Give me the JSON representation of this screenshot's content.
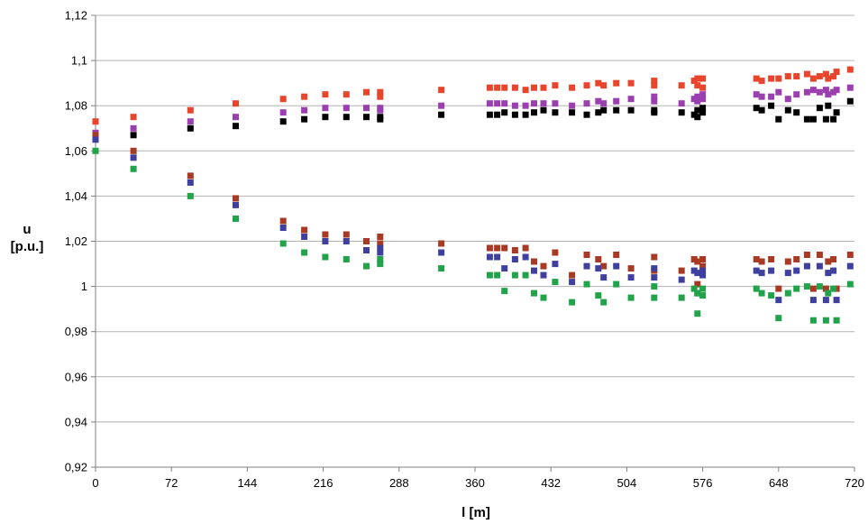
{
  "chart_data": {
    "type": "scatter",
    "xlabel": "l [m]",
    "ylabel_lines": [
      "u",
      "[p.u.]"
    ],
    "xlim": [
      0,
      720
    ],
    "ylim": [
      0.92,
      1.12
    ],
    "x_ticks": [
      0,
      72,
      144,
      216,
      288,
      360,
      432,
      504,
      576,
      648,
      720
    ],
    "x_tick_labels": [
      "0",
      "72",
      "144",
      "216",
      "288",
      "360",
      "432",
      "504",
      "576",
      "648",
      "720"
    ],
    "y_ticks": [
      0.92,
      0.94,
      0.96,
      0.98,
      1.0,
      1.02,
      1.04,
      1.06,
      1.08,
      1.1,
      1.12
    ],
    "y_tick_labels": [
      "0,92",
      "0,94",
      "0,96",
      "0,98",
      "1",
      "1,02",
      "1,04",
      "1,06",
      "1,08",
      "1,1",
      "1,12"
    ],
    "grid": "horizontal",
    "legend": "none",
    "marker": "square",
    "series": [
      {
        "color": "#e8452c",
        "points": [
          [
            0,
            1.073
          ],
          [
            36,
            1.075
          ],
          [
            90,
            1.078
          ],
          [
            133,
            1.081
          ],
          [
            178,
            1.083
          ],
          [
            198,
            1.084
          ],
          [
            218,
            1.085
          ],
          [
            238,
            1.085
          ],
          [
            257,
            1.086
          ],
          [
            270,
            1.086
          ],
          [
            270,
            1.084
          ],
          [
            328,
            1.087
          ],
          [
            374,
            1.088
          ],
          [
            381,
            1.088
          ],
          [
            388,
            1.088
          ],
          [
            398,
            1.088
          ],
          [
            408,
            1.087
          ],
          [
            416,
            1.088
          ],
          [
            425,
            1.088
          ],
          [
            436,
            1.089
          ],
          [
            452,
            1.088
          ],
          [
            466,
            1.089
          ],
          [
            477,
            1.09
          ],
          [
            482,
            1.089
          ],
          [
            494,
            1.09
          ],
          [
            508,
            1.09
          ],
          [
            530,
            1.091
          ],
          [
            530,
            1.089
          ],
          [
            556,
            1.089
          ],
          [
            568,
            1.091
          ],
          [
            571,
            1.092
          ],
          [
            571,
            1.089
          ],
          [
            576,
            1.092
          ],
          [
            576,
            1.088
          ],
          [
            627,
            1.092
          ],
          [
            632,
            1.091
          ],
          [
            641,
            1.092
          ],
          [
            648,
            1.092
          ],
          [
            657,
            1.093
          ],
          [
            665,
            1.093
          ],
          [
            675,
            1.094
          ],
          [
            681,
            1.092
          ],
          [
            687,
            1.093
          ],
          [
            693,
            1.094
          ],
          [
            695,
            1.092
          ],
          [
            700,
            1.093
          ],
          [
            703,
            1.095
          ],
          [
            716,
            1.096
          ]
        ]
      },
      {
        "color": "#9b3fb0",
        "points": [
          [
            0,
            1.068
          ],
          [
            36,
            1.07
          ],
          [
            90,
            1.073
          ],
          [
            133,
            1.075
          ],
          [
            178,
            1.077
          ],
          [
            198,
            1.078
          ],
          [
            218,
            1.079
          ],
          [
            238,
            1.079
          ],
          [
            257,
            1.079
          ],
          [
            270,
            1.079
          ],
          [
            270,
            1.078
          ],
          [
            328,
            1.08
          ],
          [
            374,
            1.081
          ],
          [
            381,
            1.081
          ],
          [
            388,
            1.081
          ],
          [
            398,
            1.08
          ],
          [
            408,
            1.08
          ],
          [
            416,
            1.081
          ],
          [
            425,
            1.081
          ],
          [
            436,
            1.081
          ],
          [
            452,
            1.08
          ],
          [
            466,
            1.081
          ],
          [
            477,
            1.082
          ],
          [
            482,
            1.081
          ],
          [
            494,
            1.082
          ],
          [
            508,
            1.083
          ],
          [
            530,
            1.082
          ],
          [
            530,
            1.084
          ],
          [
            556,
            1.081
          ],
          [
            568,
            1.083
          ],
          [
            571,
            1.084
          ],
          [
            571,
            1.082
          ],
          [
            576,
            1.085
          ],
          [
            576,
            1.083
          ],
          [
            627,
            1.085
          ],
          [
            632,
            1.084
          ],
          [
            641,
            1.084
          ],
          [
            648,
            1.086
          ],
          [
            657,
            1.083
          ],
          [
            665,
            1.085
          ],
          [
            675,
            1.086
          ],
          [
            681,
            1.087
          ],
          [
            687,
            1.086
          ],
          [
            693,
            1.087
          ],
          [
            695,
            1.085
          ],
          [
            700,
            1.086
          ],
          [
            703,
            1.087
          ],
          [
            716,
            1.088
          ]
        ]
      },
      {
        "color": "#000000",
        "points": [
          [
            0,
            1.066
          ],
          [
            36,
            1.067
          ],
          [
            90,
            1.07
          ],
          [
            133,
            1.071
          ],
          [
            178,
            1.073
          ],
          [
            198,
            1.074
          ],
          [
            218,
            1.075
          ],
          [
            238,
            1.075
          ],
          [
            257,
            1.075
          ],
          [
            270,
            1.075
          ],
          [
            270,
            1.074
          ],
          [
            328,
            1.076
          ],
          [
            374,
            1.076
          ],
          [
            381,
            1.076
          ],
          [
            388,
            1.077
          ],
          [
            398,
            1.076
          ],
          [
            408,
            1.076
          ],
          [
            416,
            1.077
          ],
          [
            425,
            1.078
          ],
          [
            436,
            1.077
          ],
          [
            452,
            1.077
          ],
          [
            466,
            1.076
          ],
          [
            477,
            1.077
          ],
          [
            482,
            1.078
          ],
          [
            494,
            1.078
          ],
          [
            508,
            1.078
          ],
          [
            530,
            1.077
          ],
          [
            530,
            1.078
          ],
          [
            556,
            1.077
          ],
          [
            568,
            1.076
          ],
          [
            571,
            1.075
          ],
          [
            571,
            1.078
          ],
          [
            576,
            1.077
          ],
          [
            576,
            1.079
          ],
          [
            627,
            1.079
          ],
          [
            632,
            1.078
          ],
          [
            641,
            1.08
          ],
          [
            648,
            1.074
          ],
          [
            657,
            1.078
          ],
          [
            665,
            1.077
          ],
          [
            675,
            1.074
          ],
          [
            681,
            1.074
          ],
          [
            687,
            1.079
          ],
          [
            693,
            1.074
          ],
          [
            695,
            1.08
          ],
          [
            700,
            1.074
          ],
          [
            703,
            1.077
          ],
          [
            716,
            1.082
          ]
        ]
      },
      {
        "color": "#a83a24",
        "points": [
          [
            0,
            1.067
          ],
          [
            36,
            1.06
          ],
          [
            90,
            1.049
          ],
          [
            133,
            1.039
          ],
          [
            178,
            1.029
          ],
          [
            198,
            1.025
          ],
          [
            218,
            1.023
          ],
          [
            238,
            1.023
          ],
          [
            257,
            1.02
          ],
          [
            270,
            1.022
          ],
          [
            270,
            1.019
          ],
          [
            328,
            1.019
          ],
          [
            374,
            1.017
          ],
          [
            381,
            1.017
          ],
          [
            388,
            1.017
          ],
          [
            398,
            1.016
          ],
          [
            408,
            1.017
          ],
          [
            416,
            1.011
          ],
          [
            425,
            1.009
          ],
          [
            436,
            1.015
          ],
          [
            452,
            1.005
          ],
          [
            466,
            1.014
          ],
          [
            477,
            1.012
          ],
          [
            482,
            1.009
          ],
          [
            494,
            1.014
          ],
          [
            508,
            1.008
          ],
          [
            530,
            1.013
          ],
          [
            530,
            1.007
          ],
          [
            556,
            1.007
          ],
          [
            568,
            1.012
          ],
          [
            571,
            1.001
          ],
          [
            571,
            1.011
          ],
          [
            576,
            1.012
          ],
          [
            576,
            1.009
          ],
          [
            627,
            1.012
          ],
          [
            632,
            1.011
          ],
          [
            641,
            1.012
          ],
          [
            648,
            0.999
          ],
          [
            657,
            1.011
          ],
          [
            665,
            1.012
          ],
          [
            675,
            1.014
          ],
          [
            681,
            0.999
          ],
          [
            687,
            1.014
          ],
          [
            693,
            0.999
          ],
          [
            695,
            1.011
          ],
          [
            700,
            1.012
          ],
          [
            703,
            0.999
          ],
          [
            716,
            1.014
          ]
        ]
      },
      {
        "color": "#3f3f9f",
        "points": [
          [
            0,
            1.065
          ],
          [
            36,
            1.057
          ],
          [
            90,
            1.046
          ],
          [
            133,
            1.036
          ],
          [
            178,
            1.026
          ],
          [
            198,
            1.022
          ],
          [
            218,
            1.02
          ],
          [
            238,
            1.02
          ],
          [
            257,
            1.016
          ],
          [
            270,
            1.017
          ],
          [
            270,
            1.015
          ],
          [
            328,
            1.015
          ],
          [
            374,
            1.013
          ],
          [
            381,
            1.013
          ],
          [
            388,
            1.008
          ],
          [
            398,
            1.012
          ],
          [
            408,
            1.013
          ],
          [
            416,
            1.007
          ],
          [
            425,
            1.005
          ],
          [
            436,
            1.01
          ],
          [
            452,
            1.002
          ],
          [
            466,
            1.009
          ],
          [
            477,
            1.008
          ],
          [
            482,
            1.004
          ],
          [
            494,
            1.009
          ],
          [
            508,
            1.004
          ],
          [
            530,
            1.008
          ],
          [
            530,
            1.004
          ],
          [
            556,
            1.003
          ],
          [
            568,
            1.007
          ],
          [
            571,
            0.997
          ],
          [
            571,
            1.006
          ],
          [
            576,
            1.007
          ],
          [
            576,
            1.005
          ],
          [
            627,
            1.007
          ],
          [
            632,
            1.006
          ],
          [
            641,
            1.007
          ],
          [
            648,
            0.994
          ],
          [
            657,
            1.006
          ],
          [
            665,
            1.007
          ],
          [
            675,
            1.009
          ],
          [
            681,
            0.994
          ],
          [
            687,
            1.009
          ],
          [
            693,
            0.994
          ],
          [
            695,
            1.006
          ],
          [
            700,
            1.007
          ],
          [
            703,
            0.994
          ],
          [
            716,
            1.009
          ]
        ]
      },
      {
        "color": "#21a34a",
        "points": [
          [
            0,
            1.06
          ],
          [
            36,
            1.052
          ],
          [
            90,
            1.04
          ],
          [
            133,
            1.03
          ],
          [
            178,
            1.019
          ],
          [
            198,
            1.015
          ],
          [
            218,
            1.013
          ],
          [
            238,
            1.012
          ],
          [
            257,
            1.009
          ],
          [
            270,
            1.012
          ],
          [
            270,
            1.01
          ],
          [
            328,
            1.008
          ],
          [
            374,
            1.005
          ],
          [
            381,
            1.005
          ],
          [
            388,
            0.998
          ],
          [
            398,
            1.005
          ],
          [
            408,
            1.005
          ],
          [
            416,
            0.997
          ],
          [
            425,
            0.995
          ],
          [
            436,
            1.002
          ],
          [
            452,
            0.993
          ],
          [
            466,
            1.001
          ],
          [
            477,
            0.996
          ],
          [
            482,
            0.993
          ],
          [
            494,
            1.001
          ],
          [
            508,
            0.995
          ],
          [
            530,
            1.0
          ],
          [
            530,
            0.995
          ],
          [
            556,
            0.995
          ],
          [
            568,
            0.999
          ],
          [
            571,
            0.988
          ],
          [
            571,
            0.997
          ],
          [
            576,
            0.999
          ],
          [
            576,
            0.996
          ],
          [
            627,
            0.999
          ],
          [
            632,
            0.997
          ],
          [
            641,
            0.996
          ],
          [
            648,
            0.986
          ],
          [
            657,
            0.997
          ],
          [
            665,
            0.999
          ],
          [
            675,
            1.0
          ],
          [
            681,
            0.985
          ],
          [
            687,
            1.0
          ],
          [
            693,
            0.985
          ],
          [
            695,
            0.997
          ],
          [
            700,
            0.999
          ],
          [
            703,
            0.985
          ],
          [
            716,
            1.001
          ]
        ]
      }
    ]
  }
}
